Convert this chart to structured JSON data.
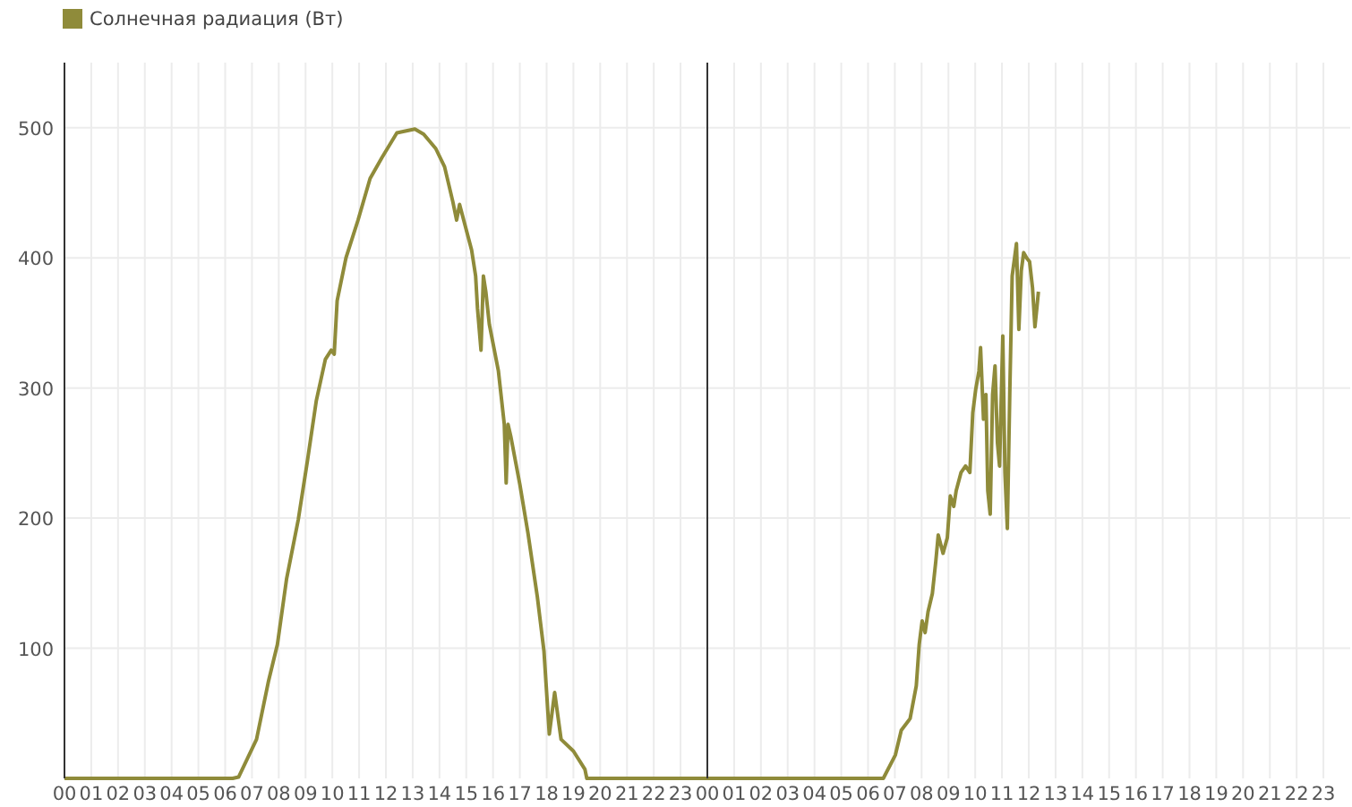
{
  "chart_data": {
    "type": "line",
    "legend": "top left",
    "grid": true,
    "series": [
      {
        "name": "Солнечная радиация (Вт)",
        "color": "#8f8b3a",
        "x": [
          0,
          6.28,
          6.5,
          7.17,
          7.62,
          7.95,
          8.29,
          8.73,
          9.07,
          9.4,
          9.74,
          9.96,
          10.07,
          10.18,
          10.51,
          10.96,
          11.41,
          11.85,
          12.41,
          13.08,
          13.41,
          13.86,
          14.19,
          14.5,
          14.64,
          14.75,
          15.2,
          15.35,
          15.42,
          15.55,
          15.64,
          15.73,
          15.86,
          16.2,
          16.42,
          16.49,
          16.56,
          16.66,
          17.0,
          17.3,
          17.65,
          17.9,
          18.1,
          18.3,
          18.54,
          19.0,
          19.43,
          19.5,
          30.57,
          31.02,
          31.24,
          31.57,
          31.8,
          31.91,
          32.02,
          32.13,
          32.24,
          32.4,
          32.53,
          32.62,
          32.8,
          32.96,
          33.07,
          33.2,
          33.29,
          33.47,
          33.64,
          33.8,
          33.91,
          34.02,
          34.14,
          34.2,
          34.31,
          34.4,
          34.47,
          34.56,
          34.65,
          34.74,
          34.83,
          34.91,
          35.03,
          35.11,
          35.2,
          35.29,
          35.38,
          35.47,
          35.54,
          35.63,
          35.72,
          35.81,
          35.92,
          36.03,
          36.14,
          36.23,
          36.3,
          36.36
        ],
        "values": [
          0,
          0,
          1,
          30,
          75,
          103,
          153,
          199,
          244,
          290,
          322,
          329,
          326,
          367,
          400,
          429,
          461,
          477,
          496,
          499,
          495,
          484,
          470,
          443,
          429,
          441,
          406,
          386,
          361,
          329,
          386,
          374,
          349,
          313,
          272,
          227,
          272,
          263,
          226,
          189,
          140,
          98,
          34,
          66,
          30,
          21,
          7,
          0,
          0,
          18,
          37,
          46,
          71,
          103,
          121,
          112,
          128,
          142,
          167,
          187,
          173,
          185,
          217,
          209,
          221,
          235,
          240,
          235,
          281,
          299,
          313,
          331,
          276,
          295,
          221,
          203,
          295,
          317,
          258,
          240,
          340,
          235,
          192,
          295,
          386,
          400,
          411,
          345,
          390,
          404,
          400,
          397,
          377,
          347,
          361,
          374
        ]
      }
    ],
    "xlim": [
      0,
      48
    ],
    "xticks": [
      {
        "value": 0,
        "label": "00"
      },
      {
        "value": 1,
        "label": "01"
      },
      {
        "value": 2,
        "label": "02"
      },
      {
        "value": 3,
        "label": "03"
      },
      {
        "value": 4,
        "label": "04"
      },
      {
        "value": 5,
        "label": "05"
      },
      {
        "value": 6,
        "label": "06"
      },
      {
        "value": 7,
        "label": "07"
      },
      {
        "value": 8,
        "label": "08"
      },
      {
        "value": 9,
        "label": "09"
      },
      {
        "value": 10,
        "label": "10"
      },
      {
        "value": 11,
        "label": "11"
      },
      {
        "value": 12,
        "label": "12"
      },
      {
        "value": 13,
        "label": "13"
      },
      {
        "value": 14,
        "label": "14"
      },
      {
        "value": 15,
        "label": "15"
      },
      {
        "value": 16,
        "label": "16"
      },
      {
        "value": 17,
        "label": "17"
      },
      {
        "value": 18,
        "label": "18"
      },
      {
        "value": 19,
        "label": "19"
      },
      {
        "value": 20,
        "label": "20"
      },
      {
        "value": 21,
        "label": "21"
      },
      {
        "value": 22,
        "label": "22"
      },
      {
        "value": 23,
        "label": "23"
      },
      {
        "value": 24,
        "label": "00"
      },
      {
        "value": 25,
        "label": "01"
      },
      {
        "value": 26,
        "label": "02"
      },
      {
        "value": 27,
        "label": "03"
      },
      {
        "value": 28,
        "label": "04"
      },
      {
        "value": 29,
        "label": "05"
      },
      {
        "value": 30,
        "label": "06"
      },
      {
        "value": 31,
        "label": "07"
      },
      {
        "value": 32,
        "label": "08"
      },
      {
        "value": 33,
        "label": "09"
      },
      {
        "value": 34,
        "label": "10"
      },
      {
        "value": 35,
        "label": "11"
      },
      {
        "value": 36,
        "label": "12"
      },
      {
        "value": 37,
        "label": "13"
      },
      {
        "value": 38,
        "label": "14"
      },
      {
        "value": 39,
        "label": "15"
      },
      {
        "value": 40,
        "label": "16"
      },
      {
        "value": 41,
        "label": "17"
      },
      {
        "value": 42,
        "label": "18"
      },
      {
        "value": 43,
        "label": "19"
      },
      {
        "value": 44,
        "label": "20"
      },
      {
        "value": 45,
        "label": "21"
      },
      {
        "value": 46,
        "label": "22"
      },
      {
        "value": 47,
        "label": "23"
      }
    ],
    "ylim": [
      0,
      550
    ],
    "yticks": [
      100,
      200,
      300,
      400,
      500
    ],
    "ref_lines": [
      {
        "axis": "x",
        "value": 24,
        "color": "#333333"
      }
    ]
  }
}
